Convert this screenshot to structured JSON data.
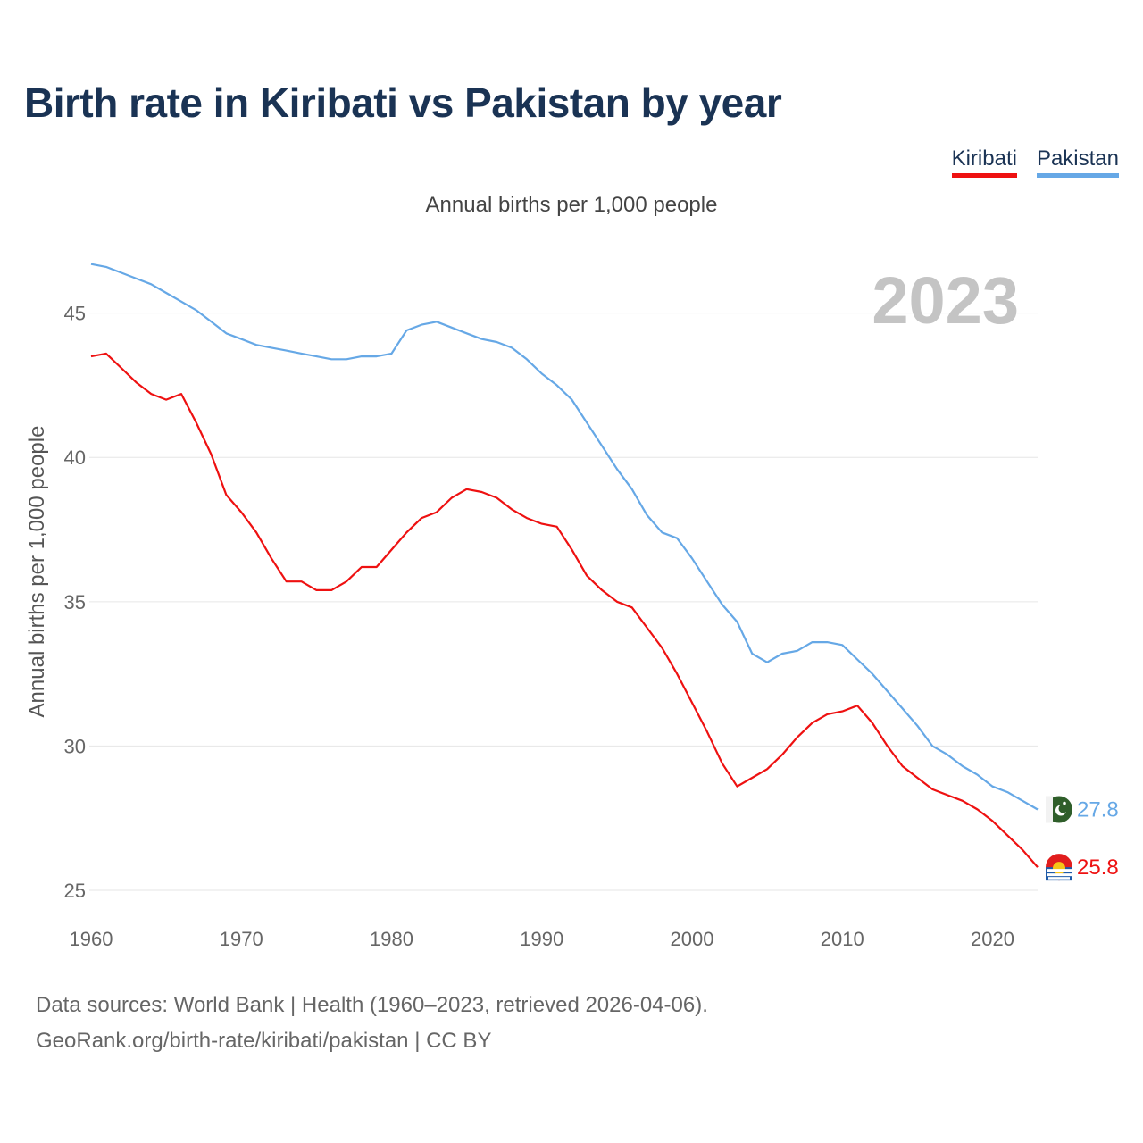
{
  "title": "Birth rate in Kiribati vs Pakistan by year",
  "legend": [
    "Kiribati",
    "Pakistan"
  ],
  "subtitle": "Annual births per 1,000 people",
  "source": {
    "line1": "Data sources: World Bank | Health (1960–2023, retrieved 2026-04-06).",
    "line2": "GeoRank.org/birth-rate/kiribati/pakistan | CC BY"
  },
  "chart_data": {
    "type": "line",
    "title": "Birth rate in Kiribati vs Pakistan by year",
    "xlabel": "",
    "ylabel": "Annual births per 1,000 people",
    "year_label": "2023",
    "xlim": [
      1960,
      2023
    ],
    "ylim": [
      25,
      47
    ],
    "x_ticks": [
      1960,
      1970,
      1980,
      1990,
      2000,
      2010,
      2020
    ],
    "y_ticks": [
      25,
      30,
      35,
      40,
      45
    ],
    "grid": true,
    "legend_position": "top-right",
    "x": [
      1960,
      1961,
      1962,
      1963,
      1964,
      1965,
      1966,
      1967,
      1968,
      1969,
      1970,
      1971,
      1972,
      1973,
      1974,
      1975,
      1976,
      1977,
      1978,
      1979,
      1980,
      1981,
      1982,
      1983,
      1984,
      1985,
      1986,
      1987,
      1988,
      1989,
      1990,
      1991,
      1992,
      1993,
      1994,
      1995,
      1996,
      1997,
      1998,
      1999,
      2000,
      2001,
      2002,
      2003,
      2004,
      2005,
      2006,
      2007,
      2008,
      2009,
      2010,
      2011,
      2012,
      2013,
      2014,
      2015,
      2016,
      2017,
      2018,
      2019,
      2020,
      2021,
      2022,
      2023
    ],
    "series": [
      {
        "name": "Kiribati",
        "color": "#ee1111",
        "end_label": "25.8",
        "values": [
          43.5,
          43.6,
          43.1,
          42.6,
          42.2,
          42.0,
          42.2,
          41.2,
          40.1,
          38.7,
          38.1,
          37.4,
          36.5,
          35.7,
          35.7,
          35.4,
          35.4,
          35.7,
          36.2,
          36.2,
          36.8,
          37.4,
          37.9,
          38.1,
          38.6,
          38.9,
          38.8,
          38.6,
          38.2,
          37.9,
          37.7,
          37.6,
          36.8,
          35.9,
          35.4,
          35.0,
          34.8,
          34.1,
          33.4,
          32.5,
          31.5,
          30.5,
          29.4,
          28.6,
          28.9,
          29.2,
          29.7,
          30.3,
          30.8,
          31.1,
          31.2,
          31.4,
          30.8,
          30.0,
          29.3,
          28.9,
          28.5,
          28.3,
          28.1,
          27.8,
          27.4,
          26.9,
          26.4,
          25.8
        ]
      },
      {
        "name": "Pakistan",
        "color": "#66a8e6",
        "end_label": "27.8",
        "values": [
          46.7,
          46.6,
          46.4,
          46.2,
          46.0,
          45.7,
          45.4,
          45.1,
          44.7,
          44.3,
          44.1,
          43.9,
          43.8,
          43.7,
          43.6,
          43.5,
          43.4,
          43.4,
          43.5,
          43.5,
          43.6,
          44.4,
          44.6,
          44.7,
          44.5,
          44.3,
          44.1,
          44.0,
          43.8,
          43.4,
          42.9,
          42.5,
          42.0,
          41.2,
          40.4,
          39.6,
          38.9,
          38.0,
          37.4,
          37.2,
          36.5,
          35.7,
          34.9,
          34.3,
          33.2,
          32.9,
          33.2,
          33.3,
          33.6,
          33.6,
          33.5,
          33.0,
          32.5,
          31.9,
          31.3,
          30.7,
          30.0,
          29.7,
          29.3,
          29.0,
          28.6,
          28.4,
          28.1,
          27.8
        ]
      }
    ]
  }
}
